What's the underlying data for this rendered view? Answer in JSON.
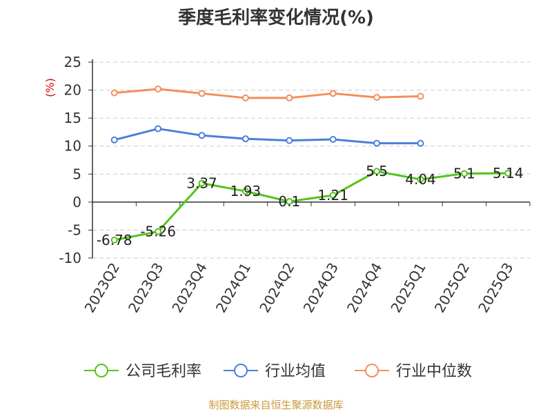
{
  "chart_data": {
    "type": "line",
    "title": "季度毛利率变化情况(%)",
    "unit_label": "(%)",
    "categories": [
      "2023Q2",
      "2023Q3",
      "2023Q4",
      "2024Q1",
      "2024Q2",
      "2024Q3",
      "2024Q4",
      "2025Q1",
      "2025Q2",
      "2025Q3"
    ],
    "ylim": [
      -10,
      25
    ],
    "yticks": [
      25,
      20,
      15,
      10,
      5,
      0,
      -5,
      -10
    ],
    "grid": true,
    "legend_position": "bottom",
    "series": [
      {
        "name": "公司毛利率",
        "color": "#52c41a",
        "values": [
          -6.78,
          -5.26,
          3.37,
          1.93,
          0.1,
          1.21,
          5.5,
          4.04,
          5.1,
          5.14
        ],
        "labels": [
          "-6.78",
          "-5.26",
          "3.37",
          "1.93",
          "0.1",
          "1.21",
          "5.5",
          "4.04",
          "5.1",
          "5.14"
        ]
      },
      {
        "name": "行业均值",
        "color": "#4a7fdb",
        "values": [
          11.1,
          13.1,
          11.9,
          11.3,
          11.0,
          11.2,
          10.5,
          10.5,
          null,
          null
        ]
      },
      {
        "name": "行业中位数",
        "color": "#f58d5c",
        "values": [
          19.5,
          20.2,
          19.4,
          18.6,
          18.6,
          19.4,
          18.7,
          18.9,
          null,
          null
        ]
      }
    ],
    "source": "制图数据来自恒生聚源数据库"
  }
}
